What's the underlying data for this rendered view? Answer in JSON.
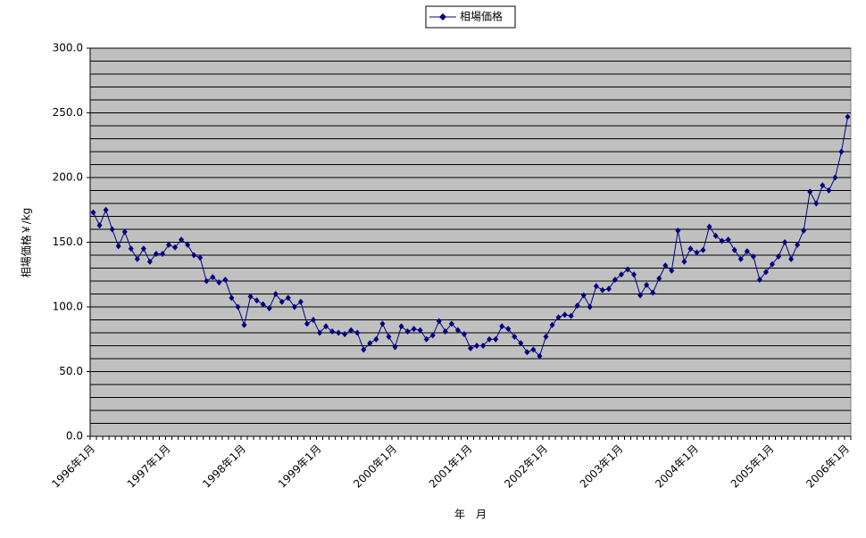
{
  "chart_data": {
    "type": "line",
    "legend_label": "相場価格",
    "y_axis_label": "相場価格￥/kg",
    "x_axis_label": "年　月",
    "categories": [
      "1996年1月",
      null,
      null,
      null,
      null,
      null,
      null,
      null,
      null,
      null,
      null,
      null,
      "1997年1月",
      null,
      null,
      null,
      null,
      null,
      null,
      null,
      null,
      null,
      null,
      null,
      "1998年1月",
      null,
      null,
      null,
      null,
      null,
      null,
      null,
      null,
      null,
      null,
      null,
      "1999年1月",
      null,
      null,
      null,
      null,
      null,
      null,
      null,
      null,
      null,
      null,
      null,
      "2000年1月",
      null,
      null,
      null,
      null,
      null,
      null,
      null,
      null,
      null,
      null,
      null,
      "2001年1月",
      null,
      null,
      null,
      null,
      null,
      null,
      null,
      null,
      null,
      null,
      null,
      "2002年1月",
      null,
      null,
      null,
      null,
      null,
      null,
      null,
      null,
      null,
      null,
      null,
      "2003年1月",
      null,
      null,
      null,
      null,
      null,
      null,
      null,
      null,
      null,
      null,
      null,
      "2004年1月",
      null,
      null,
      null,
      null,
      null,
      null,
      null,
      null,
      null,
      null,
      null,
      "2005年1月",
      null,
      null,
      null,
      null,
      null,
      null,
      null,
      null,
      null,
      null,
      null,
      "2006年1月"
    ],
    "series": [
      {
        "name": "相場価格",
        "color": "#000080",
        "values": [
          173,
          163,
          175,
          160,
          147,
          158,
          145,
          137,
          145,
          135,
          141,
          141,
          148,
          146,
          152,
          148,
          140,
          138,
          120,
          123,
          119,
          121,
          107,
          100,
          86,
          108,
          105,
          102,
          99,
          110,
          104,
          107,
          100,
          104,
          87,
          90,
          80,
          85,
          81,
          80,
          79,
          82,
          80,
          67,
          72,
          75,
          87,
          77,
          69,
          85,
          81,
          83,
          82,
          75,
          78,
          89,
          81,
          87,
          82,
          79,
          68,
          70,
          70,
          75,
          75,
          85,
          83,
          77,
          72,
          65,
          67,
          62,
          77,
          86,
          92,
          94,
          93,
          101,
          109,
          100,
          116,
          113,
          114,
          121,
          125,
          129,
          125,
          109,
          117,
          111,
          122,
          132,
          128,
          159,
          135,
          145,
          142,
          144,
          162,
          155,
          151,
          152,
          144,
          137,
          143,
          139,
          121,
          127,
          133,
          139,
          150,
          137,
          148,
          159,
          189,
          180,
          194,
          190,
          200,
          220,
          247
        ]
      }
    ],
    "ylim": [
      0,
      300
    ],
    "yticks": [
      {
        "value": 0,
        "label": "0.0"
      },
      {
        "value": 50,
        "label": "50.0"
      },
      {
        "value": 100,
        "label": "100.0"
      },
      {
        "value": 150,
        "label": "150.0"
      },
      {
        "value": 200,
        "label": "200.0"
      },
      {
        "value": 250,
        "label": "250.0"
      },
      {
        "value": 300,
        "label": "300.0"
      }
    ],
    "y_gridlines": [
      0,
      10,
      20,
      30,
      40,
      50,
      60,
      70,
      80,
      90,
      100,
      110,
      120,
      130,
      140,
      150,
      160,
      170,
      180,
      190,
      200,
      210,
      220,
      230,
      240,
      250,
      260,
      270,
      280,
      290,
      300
    ],
    "plot_background": "#c0c0c0",
    "grid": true
  }
}
